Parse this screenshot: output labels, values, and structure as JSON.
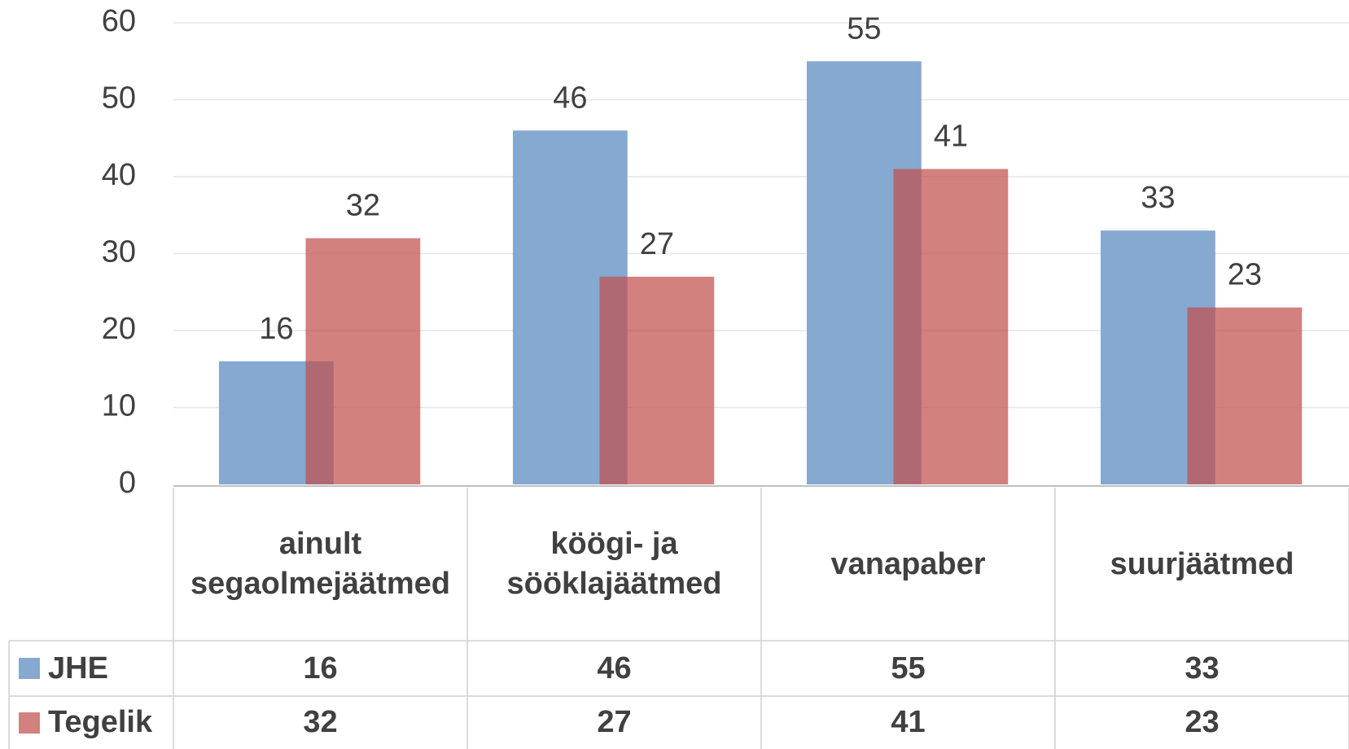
{
  "chart_data": {
    "type": "bar",
    "categories": [
      "ainult segaolmejäätmed",
      "köögi- ja sööklajäätmed",
      "vanapaber",
      "suurjäätmed"
    ],
    "series": [
      {
        "name": "JHE",
        "color": "#85a9d0",
        "values": [
          16,
          46,
          55,
          33
        ]
      },
      {
        "name": "Tegelik",
        "color": "#c0504d",
        "values": [
          32,
          27,
          41,
          23
        ]
      }
    ],
    "ylim": [
      0,
      60
    ],
    "yticks": [
      0,
      10,
      20,
      30,
      40,
      50,
      60
    ],
    "grid": true,
    "data_table": true
  }
}
